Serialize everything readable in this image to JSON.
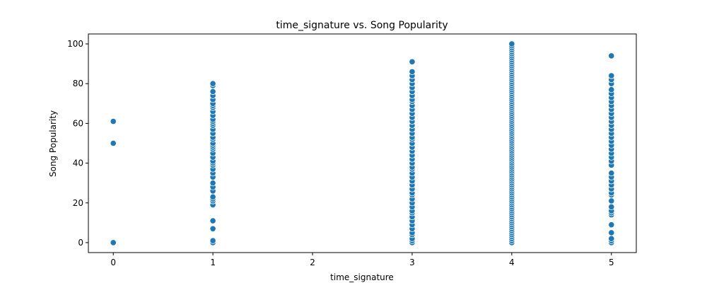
{
  "chart_data": {
    "type": "scatter",
    "title": "time_signature vs. Song Popularity",
    "xlabel": "time_signature",
    "ylabel": "Song Popularity",
    "xlim": [
      -0.25,
      5.25
    ],
    "ylim": [
      -5,
      105
    ],
    "xticks": [
      0,
      1,
      2,
      3,
      4,
      5
    ],
    "yticks": [
      0,
      20,
      40,
      60,
      80,
      100
    ],
    "grid": false,
    "marker_color": "#1f77b4",
    "series": [
      {
        "x_value": 0,
        "y": [
          0,
          50,
          61
        ]
      },
      {
        "x_value": 1,
        "y": [
          0,
          1,
          7,
          11,
          19,
          21,
          22,
          23,
          26,
          28,
          30,
          33,
          35,
          37,
          39,
          40,
          41,
          43,
          45,
          47,
          48,
          49,
          50,
          52,
          53,
          55,
          57,
          59,
          60,
          61,
          62,
          64,
          66,
          68,
          69,
          70,
          72,
          74,
          76,
          79,
          80
        ]
      },
      {
        "x_value": 3,
        "y": [
          0,
          1,
          2,
          4,
          5,
          7,
          9,
          11,
          13,
          15,
          16,
          18,
          20,
          22,
          24,
          25,
          27,
          29,
          31,
          33,
          35,
          37,
          38,
          40,
          42,
          44,
          46,
          48,
          50,
          52,
          53,
          55,
          57,
          59,
          61,
          63,
          65,
          67,
          69,
          71,
          72,
          74,
          76,
          78,
          80,
          82,
          84,
          86,
          91
        ]
      },
      {
        "x_value": 4,
        "y": [
          0,
          1,
          2,
          3,
          4,
          5,
          6,
          7,
          8,
          9,
          10,
          11,
          12,
          13,
          14,
          15,
          16,
          17,
          18,
          19,
          20,
          21,
          22,
          23,
          24,
          25,
          26,
          27,
          28,
          29,
          30,
          31,
          32,
          33,
          34,
          35,
          36,
          37,
          38,
          39,
          40,
          41,
          42,
          43,
          44,
          45,
          46,
          47,
          48,
          49,
          50,
          51,
          52,
          53,
          54,
          55,
          56,
          57,
          58,
          59,
          60,
          61,
          62,
          63,
          64,
          65,
          66,
          67,
          68,
          69,
          70,
          71,
          72,
          73,
          74,
          75,
          76,
          77,
          78,
          79,
          80,
          81,
          82,
          83,
          84,
          85,
          86,
          87,
          88,
          89,
          90,
          91,
          92,
          93,
          94,
          95,
          96,
          97,
          98,
          99,
          100
        ]
      },
      {
        "x_value": 5,
        "y": [
          0,
          1,
          2,
          5,
          9,
          14,
          15,
          16,
          18,
          21,
          24,
          25,
          27,
          29,
          31,
          33,
          35,
          39,
          41,
          43,
          45,
          47,
          49,
          51,
          53,
          55,
          57,
          59,
          61,
          63,
          65,
          67,
          69,
          71,
          73,
          75,
          77,
          80,
          82,
          84,
          94
        ]
      }
    ]
  }
}
